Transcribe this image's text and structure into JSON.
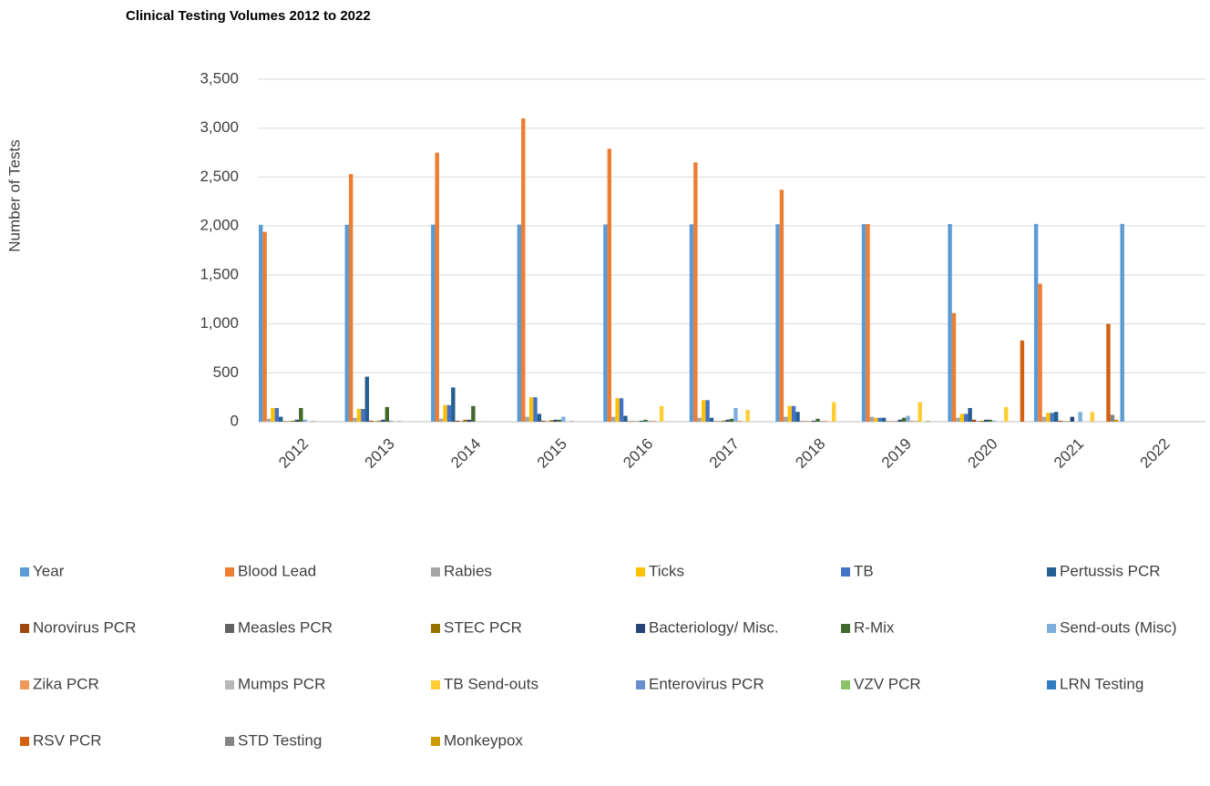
{
  "chart_data": {
    "type": "bar",
    "title": "Clinical Testing Volumes 2012 to 2022",
    "y_label": "Number of Tests",
    "categories": [
      "2012",
      "2013",
      "2014",
      "2015",
      "2016",
      "2017",
      "2018",
      "2019",
      "2020",
      "2021",
      "2022"
    ],
    "ylim": [
      0,
      3500
    ],
    "yticks": [
      0,
      500,
      {
        "value": 1000,
        "label": "1,000"
      },
      {
        "value": 1500,
        "label": "1,500"
      },
      {
        "value": 2000,
        "label": "2,000"
      },
      {
        "value": 2500,
        "label": "2,500"
      },
      {
        "value": 3000,
        "label": "3,000"
      },
      {
        "value": 3500,
        "label": "3,500"
      }
    ],
    "grid": true,
    "legend": "bottom",
    "series": [
      {
        "name": "Year",
        "color": "#5b9bd5",
        "values": [
          2012,
          2013,
          2014,
          2015,
          2016,
          2017,
          2018,
          2019,
          2020,
          2021,
          2022
        ]
      },
      {
        "name": "Blood Lead",
        "color": "#ed7d31",
        "values": [
          1940,
          2530,
          2750,
          3100,
          2790,
          2650,
          2370,
          2020,
          1110,
          1410,
          null
        ]
      },
      {
        "name": "Rabies",
        "color": "#a5a5a5",
        "values": [
          30,
          40,
          30,
          50,
          50,
          40,
          50,
          50,
          40,
          50,
          null
        ]
      },
      {
        "name": "Ticks",
        "color": "#ffc000",
        "values": [
          140,
          130,
          170,
          250,
          240,
          220,
          160,
          40,
          80,
          90,
          null
        ]
      },
      {
        "name": "TB",
        "color": "#4472c4",
        "values": [
          140,
          130,
          170,
          250,
          240,
          220,
          160,
          40,
          80,
          90,
          null
        ]
      },
      {
        "name": "Pertussis PCR",
        "color": "#255e91",
        "values": [
          50,
          460,
          350,
          80,
          60,
          40,
          100,
          40,
          140,
          100,
          null
        ]
      },
      {
        "name": "Norovirus PCR",
        "color": "#9e480e",
        "values": [
          5,
          10,
          10,
          10,
          5,
          5,
          5,
          5,
          20,
          10,
          null
        ]
      },
      {
        "name": "Measles PCR",
        "color": "#636363",
        "values": [
          5,
          5,
          5,
          5,
          5,
          5,
          5,
          5,
          5,
          5,
          null
        ]
      },
      {
        "name": "STEC PCR",
        "color": "#997300",
        "values": [
          10,
          10,
          20,
          15,
          5,
          10,
          5,
          5,
          10,
          5,
          null
        ]
      },
      {
        "name": "Bacteriology/ Misc.",
        "color": "#264478",
        "values": [
          20,
          20,
          20,
          20,
          10,
          20,
          10,
          20,
          20,
          50,
          null
        ]
      },
      {
        "name": "R-Mix",
        "color": "#43682b",
        "values": [
          140,
          150,
          160,
          20,
          20,
          30,
          30,
          40,
          20,
          0,
          null
        ]
      },
      {
        "name": "Send-outs (Misc)",
        "color": "#7cafdd",
        "values": [
          20,
          10,
          0,
          50,
          10,
          140,
          10,
          60,
          10,
          100,
          null
        ]
      },
      {
        "name": "Zika PCR",
        "color": "#f1975a",
        "values": [
          0,
          0,
          0,
          0,
          10,
          10,
          10,
          10,
          0,
          0,
          null
        ]
      },
      {
        "name": "Mumps PCR",
        "color": "#b7b7b7",
        "values": [
          10,
          10,
          5,
          10,
          5,
          5,
          5,
          10,
          5,
          5,
          null
        ]
      },
      {
        "name": "TB Send-outs",
        "color": "#ffcd33",
        "values": [
          0,
          0,
          0,
          0,
          160,
          120,
          200,
          200,
          150,
          100,
          null
        ]
      },
      {
        "name": "Enterovirus PCR",
        "color": "#698ed0",
        "values": [
          0,
          0,
          0,
          0,
          0,
          0,
          0,
          0,
          0,
          0,
          null
        ]
      },
      {
        "name": "VZV PCR",
        "color": "#8cc168",
        "values": [
          0,
          0,
          0,
          0,
          0,
          0,
          0,
          10,
          0,
          0,
          null
        ]
      },
      {
        "name": "LRN Testing",
        "color": "#327dc2",
        "values": [
          0,
          0,
          0,
          0,
          0,
          0,
          0,
          0,
          0,
          0,
          null
        ]
      },
      {
        "name": "RSV PCR",
        "color": "#d26012",
        "values": [
          0,
          0,
          0,
          0,
          0,
          0,
          0,
          0,
          830,
          1000,
          null
        ]
      },
      {
        "name": "STD Testing",
        "color": "#848484",
        "values": [
          null,
          null,
          null,
          null,
          null,
          null,
          null,
          null,
          null,
          70,
          null
        ]
      },
      {
        "name": "Monkeypox",
        "color": "#cc9a00",
        "values": [
          null,
          null,
          null,
          null,
          null,
          null,
          null,
          null,
          null,
          20,
          null
        ]
      }
    ]
  }
}
